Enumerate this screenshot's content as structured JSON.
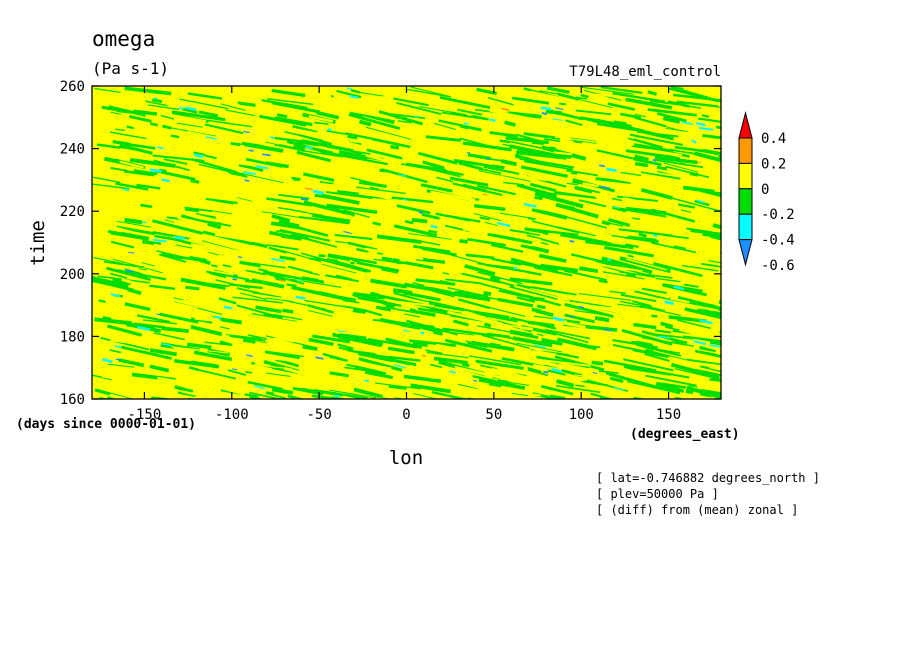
{
  "chart_data": {
    "type": "heatmap",
    "title": "omega",
    "units": "(Pa s-1)",
    "run_label": "T79L48_eml_control",
    "xlabel": "lon",
    "ylabel": "time",
    "x_units": "(degrees_east)",
    "y_units": "(days since 0000-01-01)",
    "xlim": [
      -180,
      180
    ],
    "ylim": [
      160,
      260
    ],
    "x_ticks": [
      -150,
      -100,
      -50,
      0,
      50,
      100,
      150
    ],
    "y_ticks": [
      160,
      180,
      200,
      220,
      240,
      260
    ],
    "x_tick_labels": [
      "-150",
      "-100",
      "-50",
      "0",
      "50",
      "100",
      "150"
    ],
    "y_tick_labels": [
      "160",
      "180",
      "200",
      "220",
      "240",
      "260"
    ],
    "colorbar": {
      "levels": [
        -0.6,
        -0.4,
        -0.2,
        0,
        0.2,
        0.4
      ],
      "tick_labels": [
        "-0.6",
        "-0.4",
        "-0.2",
        "0",
        "0.2",
        "0.4"
      ],
      "colors": [
        "#1e90ff",
        "#00ffff",
        "#00dd00",
        "#ffff00",
        "#ff9900",
        "#ff0000"
      ],
      "extend": "both"
    },
    "field_description_colors": {
      "dominant": "#ffff00",
      "secondary": "#00dd00",
      "rare_negative": "#00ffff",
      "rarest_negative": "#1e90ff",
      "rare_positive": "#ff9900"
    },
    "annotations": [
      "[ lat=-0.746882 degrees_north ]",
      "[ plev=50000 Pa ]",
      "[ (diff) from (mean) zonal ]"
    ],
    "grid": false
  }
}
